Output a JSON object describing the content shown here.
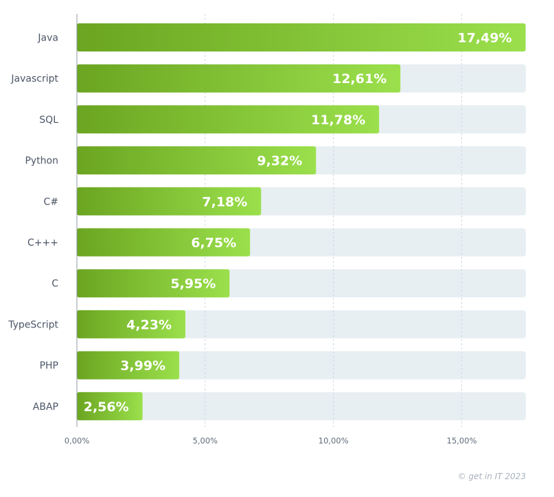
{
  "chart_data": {
    "type": "bar",
    "orientation": "horizontal",
    "categories": [
      "Java",
      "Javascript",
      "SQL",
      "Python",
      "C#",
      "C+++",
      "C",
      "TypeScript",
      "PHP",
      "ABAP"
    ],
    "values": [
      17.49,
      12.61,
      11.78,
      9.32,
      7.18,
      6.75,
      5.95,
      4.23,
      3.99,
      2.56
    ],
    "value_labels": [
      "17,49%",
      "12,61%",
      "11,78%",
      "9,32%",
      "7,18%",
      "6,75%",
      "5,95%",
      "4,23%",
      "3,99%",
      "2,56%"
    ],
    "xlim": [
      0,
      17.5
    ],
    "x_ticks": [
      0,
      5,
      10,
      15
    ],
    "x_tick_labels": [
      "0,00%",
      "5,00%",
      "10,00%",
      "15,00%"
    ],
    "grid": true,
    "title": "",
    "xlabel": "",
    "ylabel": ""
  },
  "credit": "© get in IT 2023",
  "colors": {
    "bar_start": "#6ba521",
    "bar_end": "#9be04c",
    "track": "#e8eff3",
    "grid": "#cfd8e0",
    "axis": "#8e99a6"
  }
}
